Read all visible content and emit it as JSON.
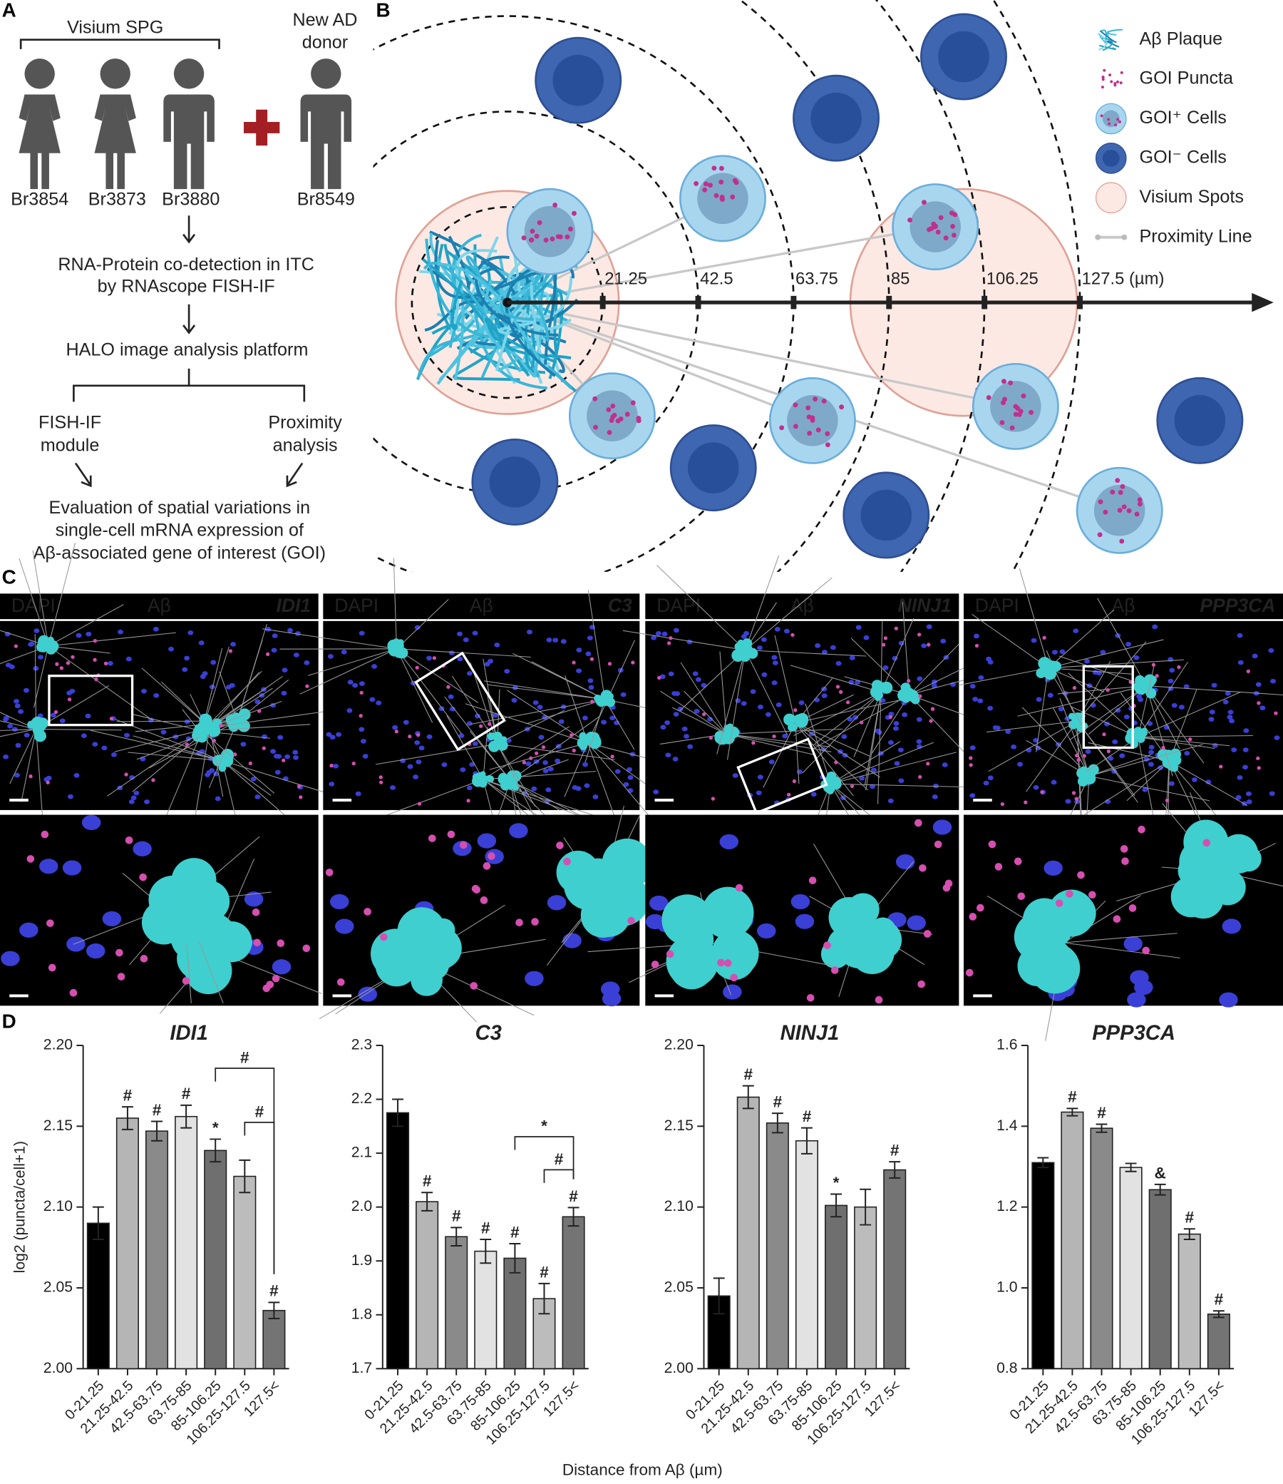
{
  "panels": {
    "a": {
      "letter": "A",
      "group_label": "Visium SPG",
      "new_donor": [
        "New AD",
        "donor"
      ],
      "donors": [
        "Br3854",
        "Br3873",
        "Br3880",
        "Br8549"
      ],
      "step1": [
        "RNA-Protein co-detection in ITC",
        "by RNAscope FISH-IF"
      ],
      "step2": "HALO image analysis platform",
      "left_branch": [
        "FISH-IF",
        "module"
      ],
      "right_branch": [
        "Proximity",
        "analysis"
      ],
      "result": [
        "Evaluation of spatial variations in",
        "single-cell mRNA expression of",
        "Aβ-associated gene of interest (GOI)"
      ]
    },
    "b": {
      "letter": "B",
      "legend": [
        "Aβ Plaque",
        "GOI Puncta",
        "GOI⁺ Cells",
        "GOI⁻ Cells",
        "Visium Spots",
        "Proximity Line"
      ],
      "axis_labels": [
        "21.25",
        "42.5",
        "63.75",
        "85",
        "106.25",
        "127.5 (µm)"
      ]
    },
    "c": {
      "letter": "C",
      "images": [
        {
          "dapi": "DAPI",
          "ab": "Aβ",
          "gene": "IDI1"
        },
        {
          "dapi": "DAPI",
          "ab": "Aβ",
          "gene": "C3"
        },
        {
          "dapi": "DAPI",
          "ab": "Aβ",
          "gene": "NINJ1"
        },
        {
          "dapi": "DAPI",
          "ab": "Aβ",
          "gene": "PPP3CA"
        }
      ]
    },
    "d": {
      "letter": "D",
      "xlabel": "Distance from Aβ (µm)",
      "ylabel": "log2 (puncta/cell+1)"
    }
  },
  "chart_data": [
    {
      "type": "bar",
      "title": "IDI1",
      "categories": [
        "0-21.25",
        "21.25-42.5",
        "42.5-63.75",
        "63.75-85",
        "85-106.25",
        "106.25-127.5",
        "127.5<"
      ],
      "values": [
        2.09,
        2.155,
        2.147,
        2.156,
        2.135,
        2.119,
        2.036
      ],
      "errors": [
        0.01,
        0.007,
        0.006,
        0.007,
        0.007,
        0.01,
        0.005
      ],
      "annotations": [
        null,
        "#",
        "#",
        "#",
        "*",
        null,
        "#"
      ],
      "brackets": [
        {
          "label": "#",
          "from": 4,
          "to": 6
        },
        {
          "label": "#",
          "from": 5,
          "to": 6
        }
      ],
      "colors": [
        "#000000",
        "#b5b5b5",
        "#8a8a8a",
        "#e2e2e2",
        "#6f6f6f",
        "#bcbcbc",
        "#747474"
      ],
      "ylim": [
        2.0,
        2.2
      ],
      "yticks": [
        {
          "value": 2.0,
          "label": "2.00"
        },
        2.05,
        {
          "value": 2.1,
          "label": "2.10"
        },
        2.15,
        {
          "value": 2.2,
          "label": "2.20"
        }
      ]
    },
    {
      "type": "bar",
      "title": "C3",
      "categories": [
        "0-21.25",
        "21.25-42.5",
        "42.5-63.75",
        "63.75-85",
        "85-106.25",
        "106.25-127.5",
        "127.5<"
      ],
      "values": [
        2.175,
        2.01,
        1.945,
        1.918,
        1.905,
        1.83,
        1.982
      ],
      "errors": [
        0.025,
        0.017,
        0.017,
        0.022,
        0.027,
        0.028,
        0.017
      ],
      "annotations": [
        null,
        "#",
        "#",
        "#",
        "#",
        "#",
        "#"
      ],
      "brackets": [
        {
          "label": "*",
          "from": 4,
          "to": 6
        },
        {
          "label": "#",
          "from": 5,
          "to": 6
        }
      ],
      "colors": [
        "#000000",
        "#b5b5b5",
        "#8a8a8a",
        "#e2e2e2",
        "#6f6f6f",
        "#bcbcbc",
        "#747474"
      ],
      "ylim": [
        1.7,
        2.3
      ],
      "yticks": [
        1.7,
        1.8,
        1.9,
        {
          "value": 2.0,
          "label": "2.0"
        },
        2.1,
        2.2,
        2.3
      ]
    },
    {
      "type": "bar",
      "title": "NINJ1",
      "categories": [
        "0-21.25",
        "21.25-42.5",
        "42.5-63.75",
        "63.75-85",
        "85-106.25",
        "106.25-127.5",
        "127.5<"
      ],
      "values": [
        2.045,
        2.168,
        2.152,
        2.141,
        2.101,
        2.1,
        2.123
      ],
      "errors": [
        0.011,
        0.007,
        0.006,
        0.008,
        0.007,
        0.011,
        0.005
      ],
      "annotations": [
        null,
        "#",
        "#",
        "#",
        "*",
        null,
        "#"
      ],
      "brackets": [],
      "colors": [
        "#000000",
        "#b5b5b5",
        "#8a8a8a",
        "#e2e2e2",
        "#6f6f6f",
        "#bcbcbc",
        "#747474"
      ],
      "ylim": [
        2.0,
        2.2
      ],
      "yticks": [
        {
          "value": 2.0,
          "label": "2.00"
        },
        2.05,
        {
          "value": 2.1,
          "label": "2.10"
        },
        2.15,
        {
          "value": 2.2,
          "label": "2.20"
        }
      ]
    },
    {
      "type": "bar",
      "title": "PPP3CA",
      "categories": [
        "0-21.25",
        "21.25-42.5",
        "42.5-63.75",
        "63.75-85",
        "85-106.25",
        "106.25-127.5",
        "127.5<"
      ],
      "values": [
        1.31,
        1.435,
        1.395,
        1.298,
        1.243,
        1.133,
        0.935
      ],
      "errors": [
        0.012,
        0.009,
        0.01,
        0.01,
        0.013,
        0.013,
        0.008
      ],
      "annotations": [
        null,
        "#",
        "#",
        null,
        "&",
        "#",
        "#"
      ],
      "brackets": [],
      "colors": [
        "#000000",
        "#b5b5b5",
        "#8a8a8a",
        "#e2e2e2",
        "#6f6f6f",
        "#bcbcbc",
        "#747474"
      ],
      "ylim": [
        0.8,
        1.6
      ],
      "yticks": [
        0.8,
        {
          "value": 1.0,
          "label": "1.0"
        },
        1.2,
        1.4,
        1.6
      ]
    }
  ]
}
